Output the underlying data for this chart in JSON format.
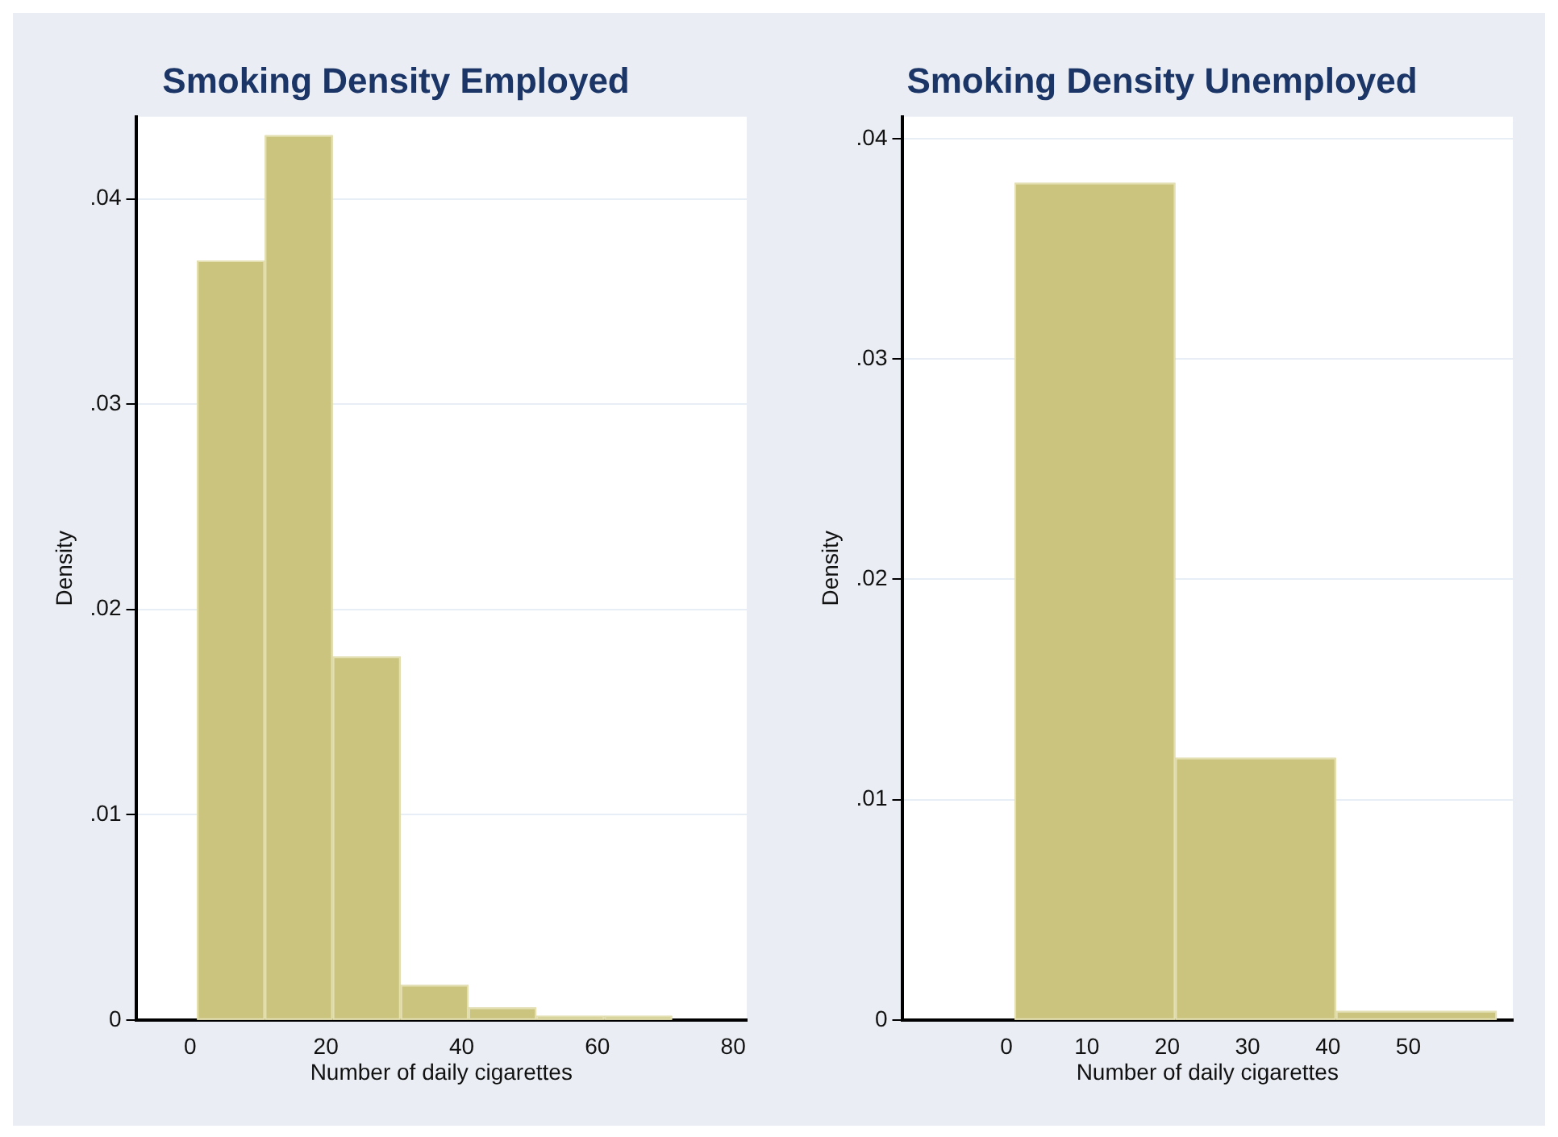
{
  "chart_data": [
    {
      "type": "histogram",
      "title": "Smoking Density Employed",
      "xlabel": "Number of daily cigarettes",
      "ylabel": "Density",
      "bins": [
        1,
        11,
        21,
        31,
        41,
        51,
        61,
        71
      ],
      "values": [
        0.037,
        0.0431,
        0.0177,
        0.0017,
        0.0006,
        0.0002,
        0.0002
      ],
      "color": "#cbc47e",
      "xlim": [
        -8,
        82
      ],
      "xticks": [
        0,
        20,
        40,
        60,
        80
      ],
      "ylim": [
        0,
        0.044
      ],
      "yticks": [
        0,
        {
          "value": 0.01,
          "label": ".01"
        },
        {
          "value": 0.02,
          "label": ".02"
        },
        {
          "value": 0.03,
          "label": ".03"
        },
        {
          "value": 0.04,
          "label": ".04"
        }
      ],
      "grid": "y",
      "legend": false
    },
    {
      "type": "histogram",
      "title": "Smoking Density Unemployed",
      "xlabel": "Number of daily cigarettes",
      "ylabel": "Density",
      "bins": [
        1,
        21,
        41,
        61
      ],
      "values": [
        0.038,
        0.0119,
        0.0004
      ],
      "color": "#cbc47e",
      "xlim": [
        -13,
        63
      ],
      "xticks": [
        0,
        10,
        20,
        30,
        40,
        50
      ],
      "ylim": [
        0,
        0.041
      ],
      "yticks": [
        0,
        {
          "value": 0.01,
          "label": ".01"
        },
        {
          "value": 0.02,
          "label": ".02"
        },
        {
          "value": 0.03,
          "label": ".03"
        },
        {
          "value": 0.04,
          "label": ".04"
        }
      ],
      "grid": "y",
      "legend": false
    }
  ]
}
